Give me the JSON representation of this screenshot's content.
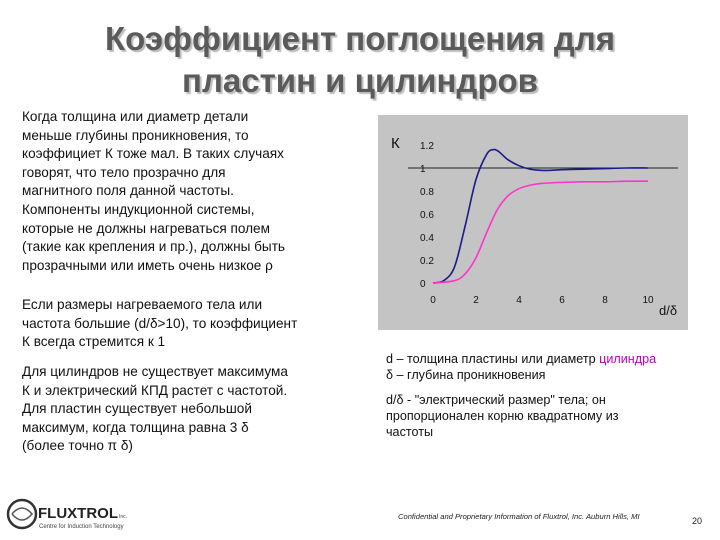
{
  "title": {
    "line1": "Коэффициент поглощения для",
    "line2": "пластин и цилиндров"
  },
  "paragraphs": {
    "p1": [
      "Когда толщина или диаметр детали",
      "меньше глубины проникновения, то",
      "коэффициет  К тоже мал. В таких случаях",
      "говорят, что тело прозрачно для",
      "магнитного поля данной частоты.",
      "Компоненты индукционной системы,",
      "которые не должны нагреваться полем",
      "(такие как крепления и пр.), должны быть",
      "прозрачными или иметь очень низкое ρ"
    ],
    "p2": [
      "Если размеры нагреваемого тела или",
      "частота большие (d/δ>10), то коэффициент",
      "К всегда стремится к 1"
    ],
    "p3": [
      "Для цилиндров не существует максимума",
      "К и электрический КПД растет с частотой.",
      "Для пластин существует небольшой",
      "максимум, когда толщина равна 3  δ",
      "(более точно π δ)"
    ]
  },
  "captions": {
    "c1_pre": "d – толщина пластины или диаметр ",
    "c1_highlight": "цилиндра",
    "c1_line2": "δ – глубина проникновения",
    "c2": [
      "d/δ -  \"электрический размер\" тела; он",
      "пропорционален корню квадратному из",
      "частоты"
    ]
  },
  "footer": {
    "confidential": "Confidential and Proprietary Information of Fluxtrol, Inc. Auburn Hills, MI",
    "page_number": "20",
    "logo_text": "FLUXTROL",
    "logo_suffix": "Inc.",
    "logo_tagline": "Centre for Induction Technology"
  },
  "colors": {
    "plate_series": "#1a1a8c",
    "cylinder_series": "#ff33cc",
    "plot_bg": "#c4c4c4",
    "title_color": "#5a5a5a"
  },
  "chart_data": {
    "type": "line",
    "ylabel": "К",
    "xlabel": "d/δ",
    "xlim": [
      0,
      10
    ],
    "ylim": [
      0,
      1.2
    ],
    "x_ticks": [
      "0",
      "2",
      "4",
      "6",
      "8",
      "10"
    ],
    "y_ticks": [
      "1.2",
      "1",
      "0.8",
      "0.6",
      "0.4",
      "0.2",
      "0"
    ],
    "reference_line_y": 1,
    "grid": false,
    "series": [
      {
        "x": [
          0,
          0.5,
          1,
          1.5,
          2,
          2.5,
          2.8,
          3,
          3.2,
          3.5,
          4,
          4.5,
          5,
          5.5,
          6,
          7,
          8,
          9,
          10
        ],
        "y": [
          0,
          0.02,
          0.14,
          0.5,
          0.9,
          1.12,
          1.16,
          1.15,
          1.12,
          1.07,
          1.02,
          0.99,
          0.98,
          0.98,
          0.985,
          0.99,
          0.995,
          1.0,
          1.0
        ]
      },
      {
        "x": [
          0,
          1,
          1.5,
          2,
          2.5,
          3,
          3.5,
          4,
          4.5,
          5,
          6,
          7,
          8,
          9,
          10
        ],
        "y": [
          0,
          0.02,
          0.08,
          0.22,
          0.44,
          0.64,
          0.76,
          0.82,
          0.85,
          0.865,
          0.875,
          0.88,
          0.88,
          0.885,
          0.885
        ]
      }
    ]
  }
}
